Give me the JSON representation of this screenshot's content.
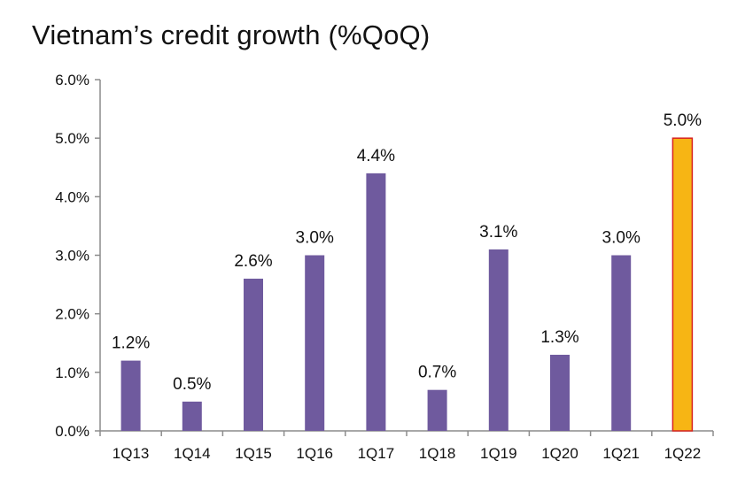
{
  "chart_data": {
    "type": "bar",
    "title": "Vietnam’s credit growth (%QoQ)",
    "xlabel": "",
    "ylabel": "",
    "categories": [
      "1Q13",
      "1Q14",
      "1Q15",
      "1Q16",
      "1Q17",
      "1Q18",
      "1Q19",
      "1Q20",
      "1Q21",
      "1Q22"
    ],
    "values": [
      1.2,
      0.5,
      2.6,
      3.0,
      4.4,
      0.7,
      3.1,
      1.3,
      3.0,
      5.0
    ],
    "data_labels": [
      "1.2%",
      "0.5%",
      "2.6%",
      "3.0%",
      "4.4%",
      "0.7%",
      "3.1%",
      "1.3%",
      "3.0%",
      "5.0%"
    ],
    "ylim": [
      0,
      6
    ],
    "y_ticks": [
      0,
      1,
      2,
      3,
      4,
      5,
      6
    ],
    "y_tick_labels": [
      "0.0%",
      "1.0%",
      "2.0%",
      "3.0%",
      "4.0%",
      "5.0%",
      "6.0%"
    ],
    "grid": false,
    "legend": "none",
    "colors": {
      "bar": "#6f5a9e",
      "highlight": "#f7b514",
      "highlight_edge": "#d8211f",
      "axis": "#8c8c8c"
    },
    "highlight_category": "1Q22"
  }
}
